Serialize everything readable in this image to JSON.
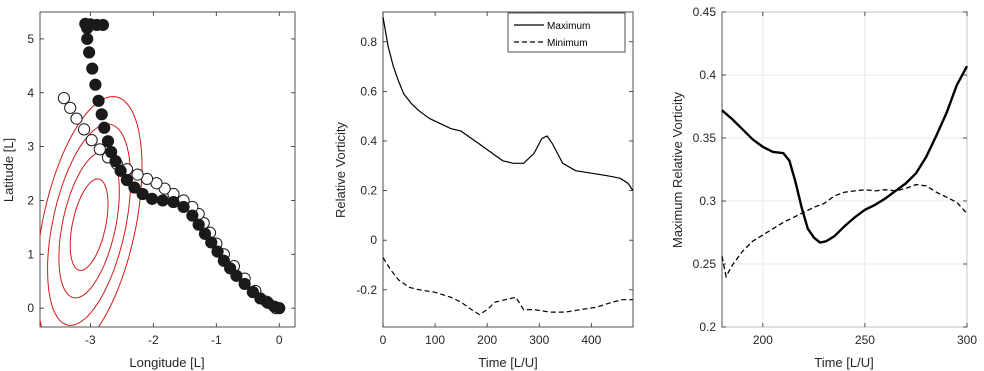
{
  "chart_data": [
    {
      "type": "scatter",
      "title": "",
      "xlabel": "Longitude [L]",
      "ylabel": "Latitude [L]",
      "xlim": [
        -3.8,
        0.25
      ],
      "ylim": [
        -0.35,
        5.5
      ],
      "xticks": [
        -3,
        -2,
        -1,
        0
      ],
      "yticks": [
        0,
        1,
        2,
        3,
        4,
        5
      ],
      "grid": false,
      "colors": {
        "filled": "#1a1a1a",
        "open": "#ffffff",
        "contour": "#d11a1a"
      },
      "series": [
        {
          "marker": "filled",
          "points": [
            [
              0.0,
              0.0
            ],
            [
              -0.08,
              0.03
            ],
            [
              -0.18,
              0.1
            ],
            [
              -0.3,
              0.18
            ],
            [
              -0.42,
              0.3
            ],
            [
              -0.55,
              0.45
            ],
            [
              -0.68,
              0.6
            ],
            [
              -0.78,
              0.74
            ],
            [
              -0.88,
              0.88
            ],
            [
              -0.98,
              1.05
            ],
            [
              -1.08,
              1.22
            ],
            [
              -1.18,
              1.38
            ],
            [
              -1.28,
              1.55
            ],
            [
              -1.38,
              1.72
            ],
            [
              -1.52,
              1.88
            ],
            [
              -1.68,
              1.97
            ],
            [
              -1.85,
              2.0
            ],
            [
              -2.02,
              2.03
            ],
            [
              -2.17,
              2.12
            ],
            [
              -2.3,
              2.24
            ],
            [
              -2.42,
              2.38
            ],
            [
              -2.52,
              2.55
            ],
            [
              -2.6,
              2.73
            ],
            [
              -2.67,
              2.9
            ],
            [
              -2.72,
              3.1
            ],
            [
              -2.78,
              3.35
            ],
            [
              -2.82,
              3.6
            ],
            [
              -2.87,
              3.85
            ],
            [
              -2.92,
              4.15
            ],
            [
              -2.97,
              4.45
            ],
            [
              -3.02,
              4.75
            ],
            [
              -3.05,
              5.0
            ],
            [
              -3.05,
              5.2
            ],
            [
              -3.0,
              5.27
            ],
            [
              -2.9,
              5.26
            ],
            [
              -2.8,
              5.26
            ],
            [
              -3.08,
              5.28
            ]
          ]
        },
        {
          "marker": "open",
          "points": [
            [
              -0.05,
              0.0
            ],
            [
              -0.2,
              0.12
            ],
            [
              -0.38,
              0.32
            ],
            [
              -0.55,
              0.55
            ],
            [
              -0.72,
              0.78
            ],
            [
              -0.88,
              1.0
            ],
            [
              -1.0,
              1.2
            ],
            [
              -1.1,
              1.4
            ],
            [
              -1.2,
              1.58
            ],
            [
              -1.28,
              1.75
            ],
            [
              -1.38,
              1.88
            ],
            [
              -1.52,
              2.0
            ],
            [
              -1.68,
              2.12
            ],
            [
              -1.82,
              2.22
            ],
            [
              -1.95,
              2.32
            ],
            [
              -2.1,
              2.4
            ],
            [
              -2.25,
              2.48
            ],
            [
              -2.42,
              2.58
            ],
            [
              -2.58,
              2.68
            ],
            [
              -2.72,
              2.8
            ],
            [
              -2.85,
              2.95
            ],
            [
              -2.98,
              3.12
            ],
            [
              -3.1,
              3.32
            ],
            [
              -3.22,
              3.52
            ],
            [
              -3.32,
              3.72
            ],
            [
              -3.42,
              3.9
            ]
          ]
        }
      ],
      "contours": {
        "center": [
          -3.02,
          1.55
        ],
        "sigma": [
          0.3,
          0.85
        ],
        "rho": 0.45,
        "levels": [
          1,
          1.6,
          2.2,
          2.8
        ]
      }
    },
    {
      "type": "line",
      "title": "",
      "xlabel": "Time [L/U]",
      "ylabel": "Relative Vorticity",
      "xlim": [
        0,
        480
      ],
      "ylim": [
        -0.35,
        0.92
      ],
      "xticks": [
        0,
        100,
        200,
        300,
        400
      ],
      "yticks": [
        -0.2,
        0,
        0.2,
        0.4,
        0.6,
        0.8
      ],
      "grid": false,
      "legend_position": "top-right",
      "series": [
        {
          "name": "Maximum",
          "style": "solid",
          "x": [
            0,
            10,
            20,
            30,
            40,
            55,
            70,
            90,
            110,
            130,
            150,
            170,
            190,
            210,
            230,
            250,
            270,
            290,
            305,
            315,
            325,
            345,
            370,
            400,
            430,
            455,
            470,
            480
          ],
          "y": [
            0.9,
            0.78,
            0.7,
            0.64,
            0.59,
            0.55,
            0.52,
            0.49,
            0.47,
            0.45,
            0.44,
            0.41,
            0.38,
            0.35,
            0.32,
            0.31,
            0.31,
            0.35,
            0.41,
            0.42,
            0.39,
            0.31,
            0.28,
            0.27,
            0.26,
            0.25,
            0.23,
            0.2
          ]
        },
        {
          "name": "Minimum",
          "style": "dashed",
          "x": [
            0,
            15,
            30,
            50,
            70,
            100,
            130,
            150,
            170,
            185,
            200,
            215,
            235,
            255,
            270,
            290,
            320,
            350,
            380,
            410,
            440,
            460,
            480
          ],
          "y": [
            -0.07,
            -0.12,
            -0.16,
            -0.19,
            -0.2,
            -0.21,
            -0.23,
            -0.25,
            -0.28,
            -0.3,
            -0.28,
            -0.25,
            -0.24,
            -0.23,
            -0.28,
            -0.28,
            -0.29,
            -0.29,
            -0.28,
            -0.27,
            -0.25,
            -0.24,
            -0.24
          ]
        }
      ]
    },
    {
      "type": "line",
      "title": "",
      "xlabel": "Time [L/U]",
      "ylabel": "Maximum Relative Vorticity",
      "xlim": [
        180,
        300
      ],
      "ylim": [
        0.2,
        0.45
      ],
      "xticks": [
        200,
        250,
        300
      ],
      "yticks": [
        0.2,
        0.25,
        0.3,
        0.35,
        0.4,
        0.45
      ],
      "grid": true,
      "series": [
        {
          "style": "solid-bold",
          "x": [
            180,
            185,
            190,
            195,
            200,
            205,
            210,
            213,
            216,
            219,
            222,
            225,
            228,
            231,
            235,
            240,
            245,
            250,
            255,
            260,
            265,
            270,
            275,
            280,
            285,
            290,
            295,
            300
          ],
          "y": [
            0.372,
            0.365,
            0.357,
            0.349,
            0.343,
            0.339,
            0.338,
            0.332,
            0.315,
            0.295,
            0.278,
            0.271,
            0.267,
            0.268,
            0.272,
            0.28,
            0.287,
            0.293,
            0.297,
            0.302,
            0.308,
            0.314,
            0.322,
            0.335,
            0.352,
            0.37,
            0.392,
            0.407
          ]
        },
        {
          "style": "dashed",
          "x": [
            180,
            182,
            185,
            190,
            195,
            200,
            205,
            210,
            215,
            220,
            225,
            230,
            235,
            240,
            245,
            250,
            255,
            260,
            265,
            270,
            275,
            280,
            285,
            290,
            295,
            300
          ],
          "y": [
            0.256,
            0.24,
            0.249,
            0.26,
            0.268,
            0.273,
            0.278,
            0.283,
            0.287,
            0.291,
            0.295,
            0.298,
            0.304,
            0.307,
            0.308,
            0.309,
            0.308,
            0.309,
            0.308,
            0.31,
            0.313,
            0.312,
            0.307,
            0.303,
            0.299,
            0.29
          ]
        }
      ]
    }
  ]
}
